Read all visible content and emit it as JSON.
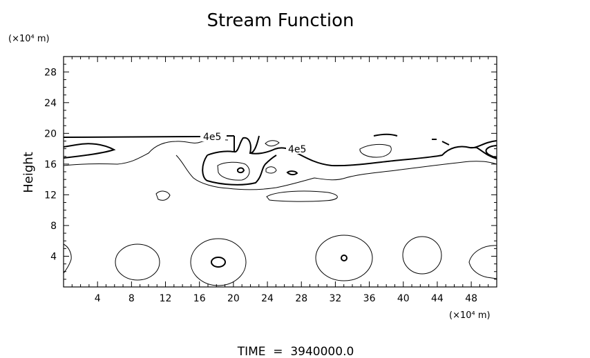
{
  "chart_data": {
    "type": "contour",
    "title": "Stream Function",
    "ylabel": "Height",
    "y_unit_label": "(×10⁴ m)",
    "x_unit_label": "(×10⁴ m)",
    "xlim": [
      0,
      51
    ],
    "ylim": [
      0,
      30
    ],
    "x_ticks": [
      4,
      8,
      12,
      16,
      20,
      24,
      28,
      32,
      36,
      40,
      44,
      48
    ],
    "y_ticks": [
      4,
      8,
      12,
      16,
      20,
      24,
      28
    ],
    "contour_labels": [
      {
        "text": "4e5",
        "x": 19.5,
        "y": 17.5
      },
      {
        "text": "4e5",
        "x": 28.0,
        "y": 17.8
      }
    ],
    "footer": "TIME  =  3940000.0",
    "line_color": "#000000",
    "background": "#ffffff"
  }
}
